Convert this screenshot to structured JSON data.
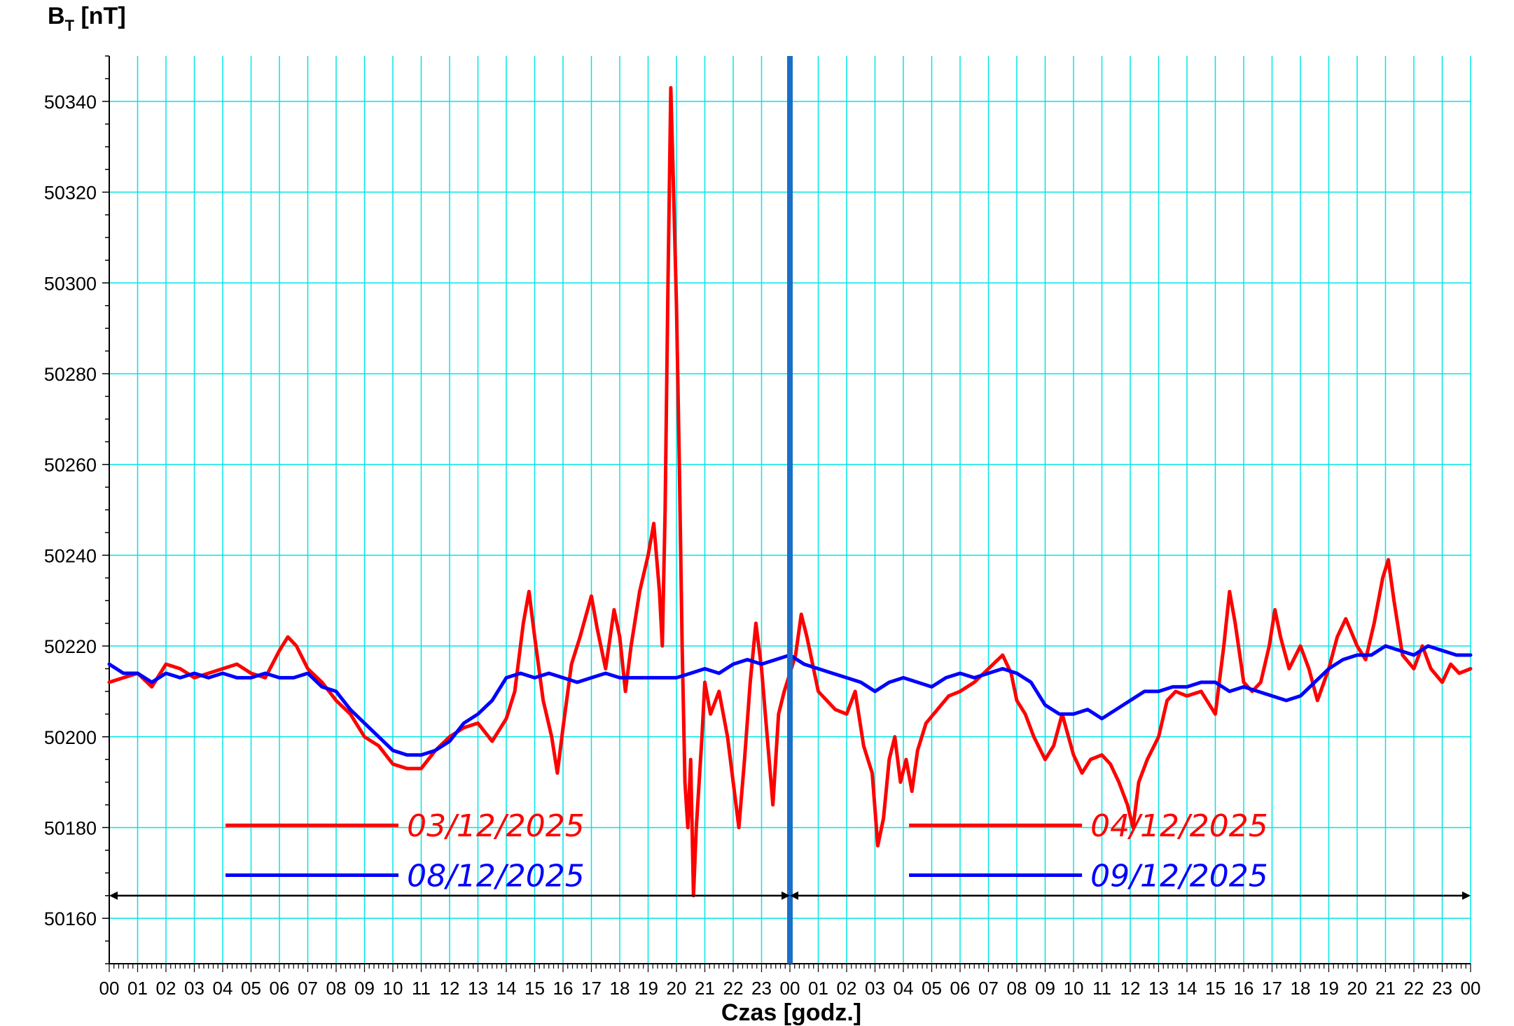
{
  "chart_data": {
    "type": "line",
    "ylabel_main": "B",
    "ylabel_sub": "T",
    "ylabel_unit": " [nT]",
    "xlabel": "Czas [godz.]",
    "ylim": [
      50150,
      50350
    ],
    "y_ticks": [
      50160,
      50180,
      50200,
      50220,
      50240,
      50260,
      50280,
      50300,
      50320,
      50340
    ],
    "x_range_hours": [
      0,
      48
    ],
    "x_tick_labels": [
      "00",
      "01",
      "02",
      "03",
      "04",
      "05",
      "06",
      "07",
      "08",
      "09",
      "10",
      "11",
      "12",
      "13",
      "14",
      "15",
      "16",
      "17",
      "18",
      "19",
      "20",
      "21",
      "22",
      "23",
      "00",
      "01",
      "02",
      "03",
      "04",
      "05",
      "06",
      "07",
      "08",
      "09",
      "10",
      "11",
      "12",
      "13",
      "14",
      "15",
      "16",
      "17",
      "18",
      "19",
      "20",
      "21",
      "22",
      "23",
      "00"
    ],
    "grid": true,
    "day_divider_hour": 24,
    "series": [
      {
        "name": "03/12/2025 – 04/12/2025",
        "color": "#ff0000",
        "points": [
          [
            0,
            50212
          ],
          [
            0.5,
            50213
          ],
          [
            1,
            50214
          ],
          [
            1.5,
            50211
          ],
          [
            2,
            50216
          ],
          [
            2.5,
            50215
          ],
          [
            3,
            50213
          ],
          [
            3.5,
            50214
          ],
          [
            4,
            50215
          ],
          [
            4.5,
            50216
          ],
          [
            5,
            50214
          ],
          [
            5.5,
            50213
          ],
          [
            6,
            50219
          ],
          [
            6.3,
            50222
          ],
          [
            6.6,
            50220
          ],
          [
            7,
            50215
          ],
          [
            7.5,
            50212
          ],
          [
            8,
            50208
          ],
          [
            8.5,
            50205
          ],
          [
            9,
            50200
          ],
          [
            9.5,
            50198
          ],
          [
            10,
            50194
          ],
          [
            10.5,
            50193
          ],
          [
            11,
            50193
          ],
          [
            11.5,
            50197
          ],
          [
            12,
            50200
          ],
          [
            12.5,
            50202
          ],
          [
            13,
            50203
          ],
          [
            13.5,
            50199
          ],
          [
            14,
            50204
          ],
          [
            14.3,
            50210
          ],
          [
            14.6,
            50225
          ],
          [
            14.8,
            50232
          ],
          [
            15,
            50222
          ],
          [
            15.3,
            50208
          ],
          [
            15.6,
            50200
          ],
          [
            15.8,
            50192
          ],
          [
            16,
            50202
          ],
          [
            16.3,
            50216
          ],
          [
            16.6,
            50222
          ],
          [
            17,
            50231
          ],
          [
            17.2,
            50224
          ],
          [
            17.5,
            50215
          ],
          [
            17.8,
            50228
          ],
          [
            18,
            50222
          ],
          [
            18.2,
            50210
          ],
          [
            18.4,
            50220
          ],
          [
            18.7,
            50232
          ],
          [
            19,
            50240
          ],
          [
            19.2,
            50247
          ],
          [
            19.4,
            50232
          ],
          [
            19.5,
            50220
          ],
          [
            19.6,
            50250
          ],
          [
            19.7,
            50300
          ],
          [
            19.8,
            50343
          ],
          [
            19.9,
            50320
          ],
          [
            20,
            50295
          ],
          [
            20.1,
            50260
          ],
          [
            20.2,
            50220
          ],
          [
            20.3,
            50190
          ],
          [
            20.4,
            50180
          ],
          [
            20.5,
            50195
          ],
          [
            20.6,
            50165
          ],
          [
            20.7,
            50180
          ],
          [
            20.9,
            50200
          ],
          [
            21,
            50212
          ],
          [
            21.2,
            50205
          ],
          [
            21.5,
            50210
          ],
          [
            21.8,
            50200
          ],
          [
            22,
            50190
          ],
          [
            22.2,
            50180
          ],
          [
            22.4,
            50195
          ],
          [
            22.6,
            50212
          ],
          [
            22.8,
            50225
          ],
          [
            23,
            50215
          ],
          [
            23.2,
            50200
          ],
          [
            23.4,
            50185
          ],
          [
            23.6,
            50205
          ],
          [
            23.8,
            50210
          ],
          [
            24,
            50214
          ],
          [
            24.2,
            50218
          ],
          [
            24.4,
            50227
          ],
          [
            24.6,
            50222
          ],
          [
            24.8,
            50216
          ],
          [
            25,
            50210
          ],
          [
            25.3,
            50208
          ],
          [
            25.6,
            50206
          ],
          [
            26,
            50205
          ],
          [
            26.3,
            50210
          ],
          [
            26.6,
            50198
          ],
          [
            26.9,
            50192
          ],
          [
            27.1,
            50176
          ],
          [
            27.3,
            50182
          ],
          [
            27.5,
            50195
          ],
          [
            27.7,
            50200
          ],
          [
            27.9,
            50190
          ],
          [
            28.1,
            50195
          ],
          [
            28.3,
            50188
          ],
          [
            28.5,
            50197
          ],
          [
            28.8,
            50203
          ],
          [
            29.2,
            50206
          ],
          [
            29.6,
            50209
          ],
          [
            30,
            50210
          ],
          [
            30.5,
            50212
          ],
          [
            31,
            50215
          ],
          [
            31.5,
            50218
          ],
          [
            31.8,
            50214
          ],
          [
            32,
            50208
          ],
          [
            32.3,
            50205
          ],
          [
            32.6,
            50200
          ],
          [
            33,
            50195
          ],
          [
            33.3,
            50198
          ],
          [
            33.6,
            50205
          ],
          [
            34,
            50196
          ],
          [
            34.3,
            50192
          ],
          [
            34.6,
            50195
          ],
          [
            35,
            50196
          ],
          [
            35.3,
            50194
          ],
          [
            35.6,
            50190
          ],
          [
            35.9,
            50185
          ],
          [
            36.1,
            50180
          ],
          [
            36.3,
            50190
          ],
          [
            36.6,
            50195
          ],
          [
            37,
            50200
          ],
          [
            37.3,
            50208
          ],
          [
            37.6,
            50210
          ],
          [
            38,
            50209
          ],
          [
            38.5,
            50210
          ],
          [
            39,
            50205
          ],
          [
            39.3,
            50220
          ],
          [
            39.5,
            50232
          ],
          [
            39.7,
            50225
          ],
          [
            40,
            50212
          ],
          [
            40.3,
            50210
          ],
          [
            40.6,
            50212
          ],
          [
            40.9,
            50220
          ],
          [
            41.1,
            50228
          ],
          [
            41.3,
            50222
          ],
          [
            41.6,
            50215
          ],
          [
            42,
            50220
          ],
          [
            42.3,
            50215
          ],
          [
            42.6,
            50208
          ],
          [
            43,
            50215
          ],
          [
            43.3,
            50222
          ],
          [
            43.6,
            50226
          ],
          [
            44,
            50220
          ],
          [
            44.3,
            50217
          ],
          [
            44.6,
            50225
          ],
          [
            44.9,
            50235
          ],
          [
            45.1,
            50239
          ],
          [
            45.3,
            50230
          ],
          [
            45.6,
            50218
          ],
          [
            46,
            50215
          ],
          [
            46.3,
            50220
          ],
          [
            46.6,
            50215
          ],
          [
            47,
            50212
          ],
          [
            47.3,
            50216
          ],
          [
            47.6,
            50214
          ],
          [
            48,
            50215
          ]
        ]
      },
      {
        "name": "08/12/2025 – 09/12/2025",
        "color": "#0000ff",
        "points": [
          [
            0,
            50216
          ],
          [
            0.5,
            50214
          ],
          [
            1,
            50214
          ],
          [
            1.5,
            50212
          ],
          [
            2,
            50214
          ],
          [
            2.5,
            50213
          ],
          [
            3,
            50214
          ],
          [
            3.5,
            50213
          ],
          [
            4,
            50214
          ],
          [
            4.5,
            50213
          ],
          [
            5,
            50213
          ],
          [
            5.5,
            50214
          ],
          [
            6,
            50213
          ],
          [
            6.5,
            50213
          ],
          [
            7,
            50214
          ],
          [
            7.5,
            50211
          ],
          [
            8,
            50210
          ],
          [
            8.5,
            50206
          ],
          [
            9,
            50203
          ],
          [
            9.5,
            50200
          ],
          [
            10,
            50197
          ],
          [
            10.5,
            50196
          ],
          [
            11,
            50196
          ],
          [
            11.5,
            50197
          ],
          [
            12,
            50199
          ],
          [
            12.5,
            50203
          ],
          [
            13,
            50205
          ],
          [
            13.5,
            50208
          ],
          [
            14,
            50213
          ],
          [
            14.5,
            50214
          ],
          [
            15,
            50213
          ],
          [
            15.5,
            50214
          ],
          [
            16,
            50213
          ],
          [
            16.5,
            50212
          ],
          [
            17,
            50213
          ],
          [
            17.5,
            50214
          ],
          [
            18,
            50213
          ],
          [
            18.5,
            50213
          ],
          [
            19,
            50213
          ],
          [
            19.5,
            50213
          ],
          [
            20,
            50213
          ],
          [
            20.5,
            50214
          ],
          [
            21,
            50215
          ],
          [
            21.5,
            50214
          ],
          [
            22,
            50216
          ],
          [
            22.5,
            50217
          ],
          [
            23,
            50216
          ],
          [
            23.5,
            50217
          ],
          [
            24,
            50218
          ],
          [
            24.5,
            50216
          ],
          [
            25,
            50215
          ],
          [
            25.5,
            50214
          ],
          [
            26,
            50213
          ],
          [
            26.5,
            50212
          ],
          [
            27,
            50210
          ],
          [
            27.5,
            50212
          ],
          [
            28,
            50213
          ],
          [
            28.5,
            50212
          ],
          [
            29,
            50211
          ],
          [
            29.5,
            50213
          ],
          [
            30,
            50214
          ],
          [
            30.5,
            50213
          ],
          [
            31,
            50214
          ],
          [
            31.5,
            50215
          ],
          [
            32,
            50214
          ],
          [
            32.5,
            50212
          ],
          [
            33,
            50207
          ],
          [
            33.5,
            50205
          ],
          [
            34,
            50205
          ],
          [
            34.5,
            50206
          ],
          [
            35,
            50204
          ],
          [
            35.5,
            50206
          ],
          [
            36,
            50208
          ],
          [
            36.5,
            50210
          ],
          [
            37,
            50210
          ],
          [
            37.5,
            50211
          ],
          [
            38,
            50211
          ],
          [
            38.5,
            50212
          ],
          [
            39,
            50212
          ],
          [
            39.5,
            50210
          ],
          [
            40,
            50211
          ],
          [
            40.5,
            50210
          ],
          [
            41,
            50209
          ],
          [
            41.5,
            50208
          ],
          [
            42,
            50209
          ],
          [
            42.5,
            50212
          ],
          [
            43,
            50215
          ],
          [
            43.5,
            50217
          ],
          [
            44,
            50218
          ],
          [
            44.5,
            50218
          ],
          [
            45,
            50220
          ],
          [
            45.5,
            50219
          ],
          [
            46,
            50218
          ],
          [
            46.5,
            50220
          ],
          [
            47,
            50219
          ],
          [
            47.5,
            50218
          ],
          [
            48,
            50218
          ]
        ]
      }
    ],
    "legend": [
      {
        "label": "03/12/2025",
        "color": "#ff0000",
        "group": "left"
      },
      {
        "label": "08/12/2025",
        "color": "#0000ff",
        "group": "left"
      },
      {
        "label": "04/12/2025",
        "color": "#ff0000",
        "group": "right"
      },
      {
        "label": "09/12/2025",
        "color": "#0000ff",
        "group": "right"
      }
    ],
    "colors": {
      "grid": "#00e5e5",
      "divider": "#1a6fc8",
      "axis": "#000000"
    }
  }
}
